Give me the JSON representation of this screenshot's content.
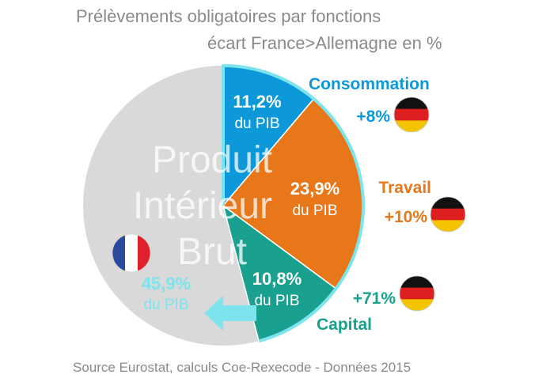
{
  "title": "Prélèvements obligatoires par fonctions",
  "subtitle": "écart France>Allemagne en %",
  "source": "Source Eurostat, calculs Coe-Rexecode - Données 2015",
  "chart_data": {
    "type": "pie",
    "center_label": [
      "Produit",
      "Intérieur",
      "Brut"
    ],
    "slices": [
      {
        "name": "Consommation",
        "value": 11.2,
        "value_text": "11,2%",
        "unit_text": "du PIB",
        "diff_text": "+8%",
        "color": "#0d99d9"
      },
      {
        "name": "Travail",
        "value": 23.9,
        "value_text": "23,9%",
        "unit_text": "du PIB",
        "diff_text": "+10%",
        "color": "#e8771a"
      },
      {
        "name": "Capital",
        "value": 10.8,
        "value_text": "10,8%",
        "unit_text": "du PIB",
        "diff_text": "+71%",
        "color": "#1aa08e"
      }
    ],
    "total": {
      "value": 45.9,
      "value_text": "45,9%",
      "unit_text": "du PIB",
      "color": "#7de3ec"
    },
    "rest_color": "#d9d9d9",
    "flags": {
      "france": [
        "#2a4a9e",
        "#ffffff",
        "#e0212b"
      ],
      "germany": [
        "#111111",
        "#dd1f1f",
        "#f5c400"
      ]
    }
  }
}
